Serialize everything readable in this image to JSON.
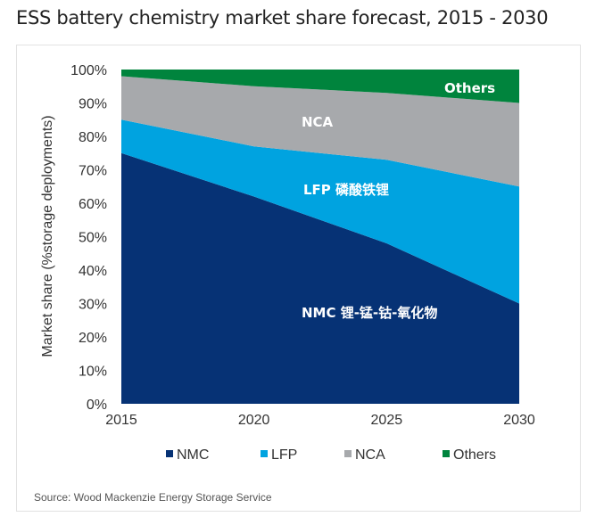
{
  "title": "ESS battery chemistry market share forecast, 2015 - 2030",
  "source": "Source: Wood Mackenzie Energy Storage Service",
  "chart_data": {
    "type": "area",
    "stacked": true,
    "title": "ESS battery chemistry market share forecast, 2015 - 2030",
    "xlabel": "",
    "ylabel": "Market share (%storage deployments)",
    "x": [
      2015,
      2020,
      2025,
      2030
    ],
    "x_tick_labels": [
      "2015",
      "2020",
      "2025",
      "2030"
    ],
    "ylim": [
      0,
      100
    ],
    "y_tick_labels": [
      "0%",
      "10%",
      "20%",
      "30%",
      "40%",
      "50%",
      "60%",
      "70%",
      "80%",
      "90%",
      "100%"
    ],
    "grid": false,
    "legend_position": "bottom",
    "series": [
      {
        "name": "NMC",
        "values": [
          75,
          62,
          48,
          30
        ],
        "color": "#063275",
        "area_label": "NMC  锂-锰-钴-氧化物"
      },
      {
        "name": "LFP",
        "values": [
          10,
          15,
          25,
          35
        ],
        "color": "#00a3e0",
        "area_label": "LFP  磷酸铁锂"
      },
      {
        "name": "NCA",
        "values": [
          13,
          18,
          20,
          25
        ],
        "color": "#a7a9ac",
        "area_label": "NCA"
      },
      {
        "name": "Others",
        "values": [
          2,
          5,
          7,
          10
        ],
        "color": "#00843d",
        "area_label": "Others"
      }
    ]
  }
}
